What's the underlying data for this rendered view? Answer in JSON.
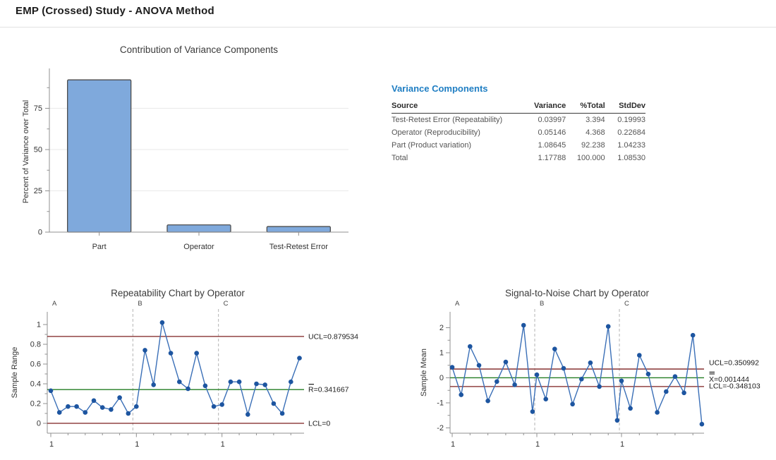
{
  "page": {
    "title": "EMP (Crossed) Study - ANOVA Method"
  },
  "variance_components": {
    "heading": "Variance Components",
    "columns": [
      "Source",
      "Variance",
      "%Total",
      "StdDev"
    ],
    "rows": [
      [
        "Test-Retest Error (Repeatability)",
        "0.03997",
        "3.394",
        "0.19993"
      ],
      [
        "Operator (Reproducibility)",
        "0.05146",
        "4.368",
        "0.22684"
      ],
      [
        "Part (Product variation)",
        "1.08645",
        "92.238",
        "1.04233"
      ],
      [
        "Total",
        "1.17788",
        "100.000",
        "1.08530"
      ]
    ]
  },
  "colors": {
    "heading_blue": "#1F7EC3",
    "bar_fill": "#7FA9DC",
    "bar_stroke": "#4D4D4D",
    "line_blue": "#3A6FB7",
    "marker_blue": "#1D55A0",
    "control_limit_red": "#7C1F1F",
    "center_line_green": "#237D23",
    "grid_gray": "#e9e9e9",
    "axis_gray": "#909090",
    "separator_gray": "#b3b3b3"
  },
  "chart_data": [
    {
      "id": "contribution",
      "type": "bar",
      "title": "Contribution of Variance Components",
      "ylabel": "Percent of Variance over Total",
      "xlabel": "",
      "categories": [
        "Part",
        "Operator",
        "Test-Retest Error"
      ],
      "values": [
        92.238,
        4.368,
        3.394
      ],
      "ylim": [
        0,
        100
      ],
      "yticks": [
        "0",
        "25",
        "50",
        "75"
      ],
      "grid": true,
      "legend": "none"
    },
    {
      "id": "repeatability",
      "type": "line",
      "title": "Repeatability Chart by Operator",
      "ylabel": "Sample Range",
      "sections": [
        "A",
        "B",
        "C"
      ],
      "x_section_tick_label": "1",
      "ylim": [
        -0.07,
        1.07
      ],
      "yticks": [
        "0",
        "0.2",
        "0.4",
        "0.6",
        "0.8",
        "1"
      ],
      "grid": false,
      "series": [
        {
          "name": "Sample Range",
          "values": [
            0.33,
            0.11,
            0.17,
            0.17,
            0.11,
            0.23,
            0.16,
            0.14,
            0.26,
            0.1,
            0.17,
            0.74,
            0.39,
            1.02,
            0.71,
            0.42,
            0.35,
            0.71,
            0.38,
            0.17,
            0.19,
            0.42,
            0.42,
            0.09,
            0.4,
            0.39,
            0.2,
            0.1,
            0.42,
            0.66
          ]
        }
      ],
      "control_lines": [
        {
          "name": "UCL",
          "label": "UCL=0.879534",
          "value": 0.879534,
          "style": "limit"
        },
        {
          "name": "Rbar",
          "label": "R=0.341667",
          "value": 0.341667,
          "style": "center",
          "accent": "bar"
        },
        {
          "name": "LCL",
          "label": "LCL=0",
          "value": 0,
          "style": "limit"
        }
      ]
    },
    {
      "id": "signal_to_noise",
      "type": "line",
      "title": "Signal-to-Noise Chart by Operator",
      "ylabel": "Sample Mean",
      "sections": [
        "A",
        "B",
        "C"
      ],
      "x_section_tick_label": "1",
      "ylim": [
        -2.3,
        2.3
      ],
      "yticks": [
        "-2",
        "-1",
        "0",
        "1",
        "2"
      ],
      "grid": false,
      "series": [
        {
          "name": "Sample Mean",
          "values": [
            0.42,
            -0.68,
            1.25,
            0.5,
            -0.92,
            -0.15,
            0.63,
            -0.28,
            2.1,
            -1.35,
            0.12,
            -0.85,
            1.15,
            0.38,
            -1.05,
            -0.05,
            0.6,
            -0.35,
            2.05,
            -1.7,
            -0.12,
            -1.22,
            0.9,
            0.15,
            -1.38,
            -0.55,
            0.05,
            -0.6,
            1.7,
            -1.85
          ]
        }
      ],
      "control_lines": [
        {
          "name": "UCL",
          "label": "UCL=0.350992",
          "value": 0.350992,
          "style": "limit",
          "label_dy": -9
        },
        {
          "name": "Xbar",
          "label": "X=0.001444",
          "value": 0.001444,
          "style": "center",
          "accent": "dbar",
          "label_dy": 2
        },
        {
          "name": "LCL",
          "label": "LCL=-0.348103",
          "value": -0.348103,
          "style": "limit",
          "label_dy": -1
        }
      ]
    }
  ]
}
